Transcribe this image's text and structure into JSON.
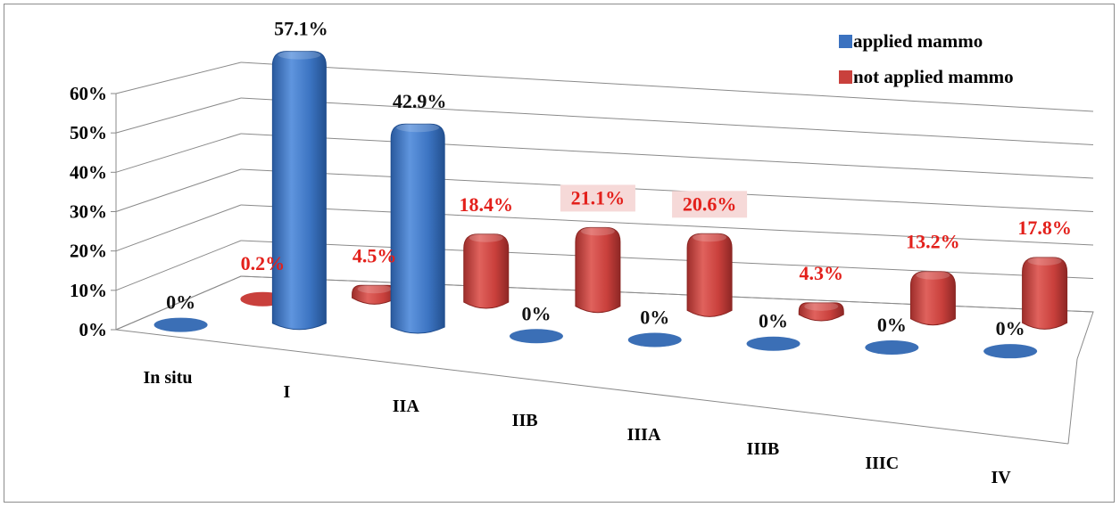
{
  "chart_data": {
    "type": "bar",
    "categories": [
      "In situ",
      "I",
      "IIA",
      "IIB",
      "IIIA",
      "IIIB",
      "IIIC",
      "IV"
    ],
    "series": [
      {
        "name": "applied mammo",
        "values": [
          0,
          57.1,
          42.9,
          0,
          0,
          0,
          0,
          0
        ],
        "labels": [
          "0%",
          "57.1%",
          "42.9%",
          "0%",
          "0%",
          "0%",
          "0%",
          "0%"
        ],
        "color": "#3b72c0"
      },
      {
        "name": "not applied mammo",
        "values": [
          0.2,
          4.5,
          18.4,
          21.1,
          20.6,
          4.3,
          13.2,
          17.8
        ],
        "labels": [
          "0.2%",
          "4.5%",
          "18.4%",
          "21.1%",
          "20.6%",
          "4.3%",
          "13.2%",
          "17.8%"
        ],
        "color": "#c9403c"
      }
    ],
    "y_ticks": [
      "0%",
      "10%",
      "20%",
      "30%",
      "40%",
      "50%",
      "60%"
    ],
    "ylim": [
      0,
      60
    ],
    "grid": true,
    "legend": "top-right",
    "label_colors": {
      "applied": "#111111",
      "not_applied": "#e3201b"
    },
    "highlight_label_bg": "#f6d9d8"
  }
}
